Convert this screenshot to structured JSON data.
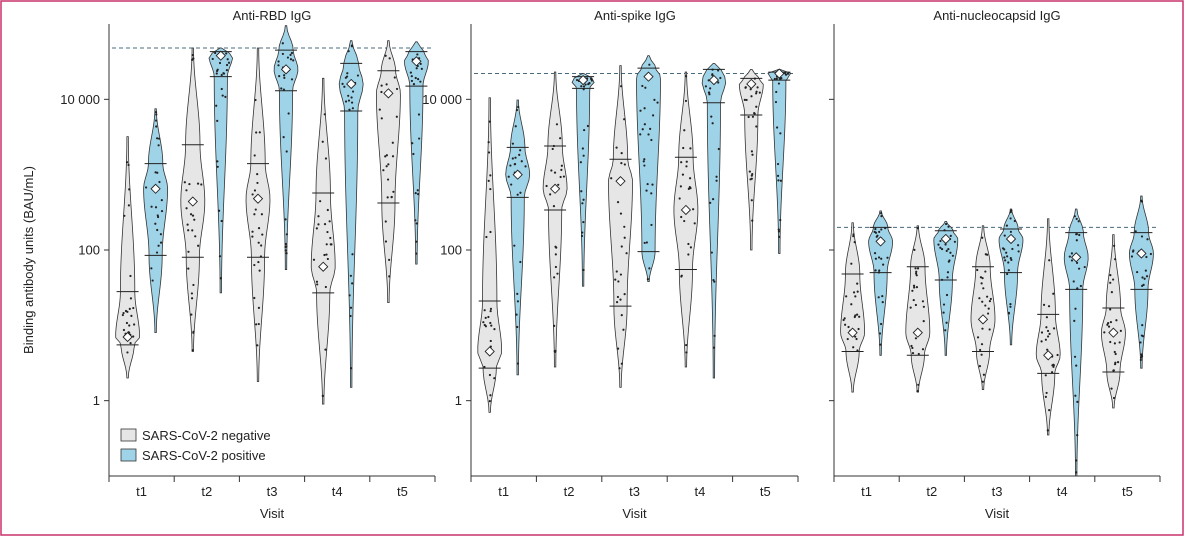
{
  "figure": {
    "ylabel": "Binding antibody units (BAU/mL)",
    "legend": {
      "placement": "bottom-left",
      "items": [
        {
          "label": "SARS-CoV-2 negative",
          "color": "#e6e6e6"
        },
        {
          "label": "SARS-CoV-2 positive",
          "color": "#9fd3e8"
        }
      ]
    },
    "colors": {
      "negative": "#e6e6e6",
      "positive": "#9fd3e8",
      "frame": "#c9326b",
      "threshold_line": "#4a6b7d"
    }
  },
  "chart_data": [
    {
      "type": "violin",
      "title": "Anti-RBD IgG",
      "xlabel": "Visit",
      "categories": [
        "t1",
        "t2",
        "t3",
        "t4",
        "t5"
      ],
      "yscale": "log",
      "ylim": [
        0.1,
        100000
      ],
      "yticks": [
        "1",
        "100",
        "10 000"
      ],
      "threshold": 48000,
      "series": [
        {
          "name": "SARS-CoV-2 negative",
          "groups": [
            {
              "min": 2,
              "q1": 5.5,
              "median": 7,
              "q3": 28,
              "max": 3200
            },
            {
              "min": 4.5,
              "q1": 80,
              "median": 440,
              "q3": 2500,
              "max": 48000
            },
            {
              "min": 1.8,
              "q1": 80,
              "median": 480,
              "q3": 1400,
              "max": 48000
            },
            {
              "min": 0.9,
              "q1": 27,
              "median": 60,
              "q3": 570,
              "max": 19000
            },
            {
              "min": 20,
              "q1": 420,
              "median": 12000,
              "q3": 24000,
              "max": 60000
            }
          ]
        },
        {
          "name": "SARS-CoV-2 positive",
          "groups": [
            {
              "min": 8,
              "q1": 85,
              "median": 650,
              "q3": 1400,
              "max": 7500
            },
            {
              "min": 27,
              "q1": 20000,
              "median": 38000,
              "q3": 43000,
              "max": 48000
            },
            {
              "min": 55,
              "q1": 13000,
              "median": 25000,
              "q3": 45000,
              "max": 95000
            },
            {
              "min": 1.5,
              "q1": 7000,
              "median": 16000,
              "q3": 30000,
              "max": 60000
            },
            {
              "min": 65,
              "q1": 15000,
              "median": 32000,
              "q3": 43000,
              "max": 58000
            }
          ]
        }
      ]
    },
    {
      "type": "violin",
      "title": "Anti-spike IgG",
      "xlabel": "Visit",
      "categories": [
        "t1",
        "t2",
        "t3",
        "t4",
        "t5"
      ],
      "yscale": "log",
      "ylim": [
        0.1,
        100000
      ],
      "yticks": [
        "1",
        "100",
        "10 000"
      ],
      "threshold": 22000,
      "series": [
        {
          "name": "SARS-CoV-2 negative",
          "groups": [
            {
              "min": 0.7,
              "q1": 2.7,
              "median": 4.5,
              "q3": 21,
              "max": 10500
            },
            {
              "min": 2.8,
              "q1": 340,
              "median": 650,
              "q3": 2400,
              "max": 23000
            },
            {
              "min": 1.5,
              "q1": 18,
              "median": 820,
              "q3": 1600,
              "max": 28000
            },
            {
              "min": 2.8,
              "q1": 55,
              "median": 340,
              "q3": 1700,
              "max": 23000
            },
            {
              "min": 100,
              "q1": 6200,
              "median": 16000,
              "q3": 19000,
              "max": 25000
            }
          ]
        },
        {
          "name": "SARS-CoV-2 positive",
          "groups": [
            {
              "min": 2.2,
              "q1": 500,
              "median": 1000,
              "q3": 2300,
              "max": 9800
            },
            {
              "min": 33,
              "q1": 14000,
              "median": 18000,
              "q3": 20000,
              "max": 22000
            },
            {
              "min": 38,
              "q1": 95,
              "median": 20000,
              "q3": 26000,
              "max": 38000
            },
            {
              "min": 2,
              "q1": 9000,
              "median": 18000,
              "q3": 25000,
              "max": 30000
            },
            {
              "min": 90,
              "q1": 18000,
              "median": 22000,
              "q3": 23000,
              "max": 25000
            }
          ]
        }
      ]
    },
    {
      "type": "violin",
      "title": "Anti-nucleocapsid IgG",
      "xlabel": "Visit",
      "categories": [
        "t1",
        "t2",
        "t3",
        "t4",
        "t5"
      ],
      "yscale": "log",
      "ylim": [
        0.1,
        100000
      ],
      "yticks": [],
      "threshold": 200,
      "series": [
        {
          "name": "SARS-CoV-2 negative",
          "groups": [
            {
              "min": 1.3,
              "q1": 4.5,
              "median": 8,
              "q3": 48,
              "max": 230
            },
            {
              "min": 1.3,
              "q1": 4,
              "median": 8,
              "q3": 60,
              "max": 210
            },
            {
              "min": 1.4,
              "q1": 4.5,
              "median": 12,
              "q3": 60,
              "max": 210
            },
            {
              "min": 0.35,
              "q1": 2.3,
              "median": 4,
              "q3": 14,
              "max": 260
            },
            {
              "min": 0.8,
              "q1": 2.4,
              "median": 8,
              "q3": 17,
              "max": 160
            }
          ]
        },
        {
          "name": "SARS-CoV-2 positive",
          "groups": [
            {
              "min": 4,
              "q1": 50,
              "median": 130,
              "q3": 200,
              "max": 330
            },
            {
              "min": 4,
              "q1": 40,
              "median": 140,
              "q3": 180,
              "max": 240
            },
            {
              "min": 5.5,
              "q1": 50,
              "median": 140,
              "q3": 190,
              "max": 350
            },
            {
              "min": 0.1,
              "q1": 30,
              "median": 80,
              "q3": 170,
              "max": 350
            },
            {
              "min": 2.7,
              "q1": 30,
              "median": 90,
              "q3": 170,
              "max": 520
            }
          ]
        }
      ]
    }
  ]
}
